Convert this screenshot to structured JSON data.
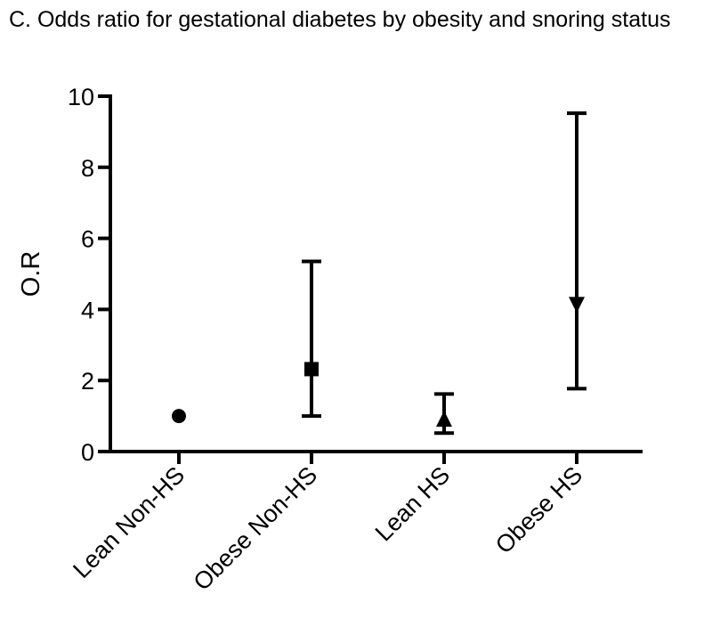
{
  "chart_data": {
    "type": "scatter",
    "title": "C.   Odds ratio for gestational diabetes by obesity and snoring status",
    "xlabel": "",
    "ylabel": "O.R",
    "ylim": [
      0,
      10
    ],
    "yticks": [
      0,
      2,
      4,
      6,
      8,
      10
    ],
    "grid": false,
    "categories": [
      "Lean Non-HS",
      "Obese Non-HS",
      "Lean HS",
      "Obese HS"
    ],
    "series": [
      {
        "name": "Odds ratio",
        "values": [
          1.0,
          2.32,
          0.9,
          4.15
        ],
        "ci_lower": [
          1.0,
          1.0,
          0.52,
          1.77
        ],
        "ci_upper": [
          1.0,
          5.35,
          1.62,
          9.52
        ],
        "markers": [
          "circle",
          "square",
          "triangle-up",
          "triangle-down"
        ]
      }
    ]
  }
}
